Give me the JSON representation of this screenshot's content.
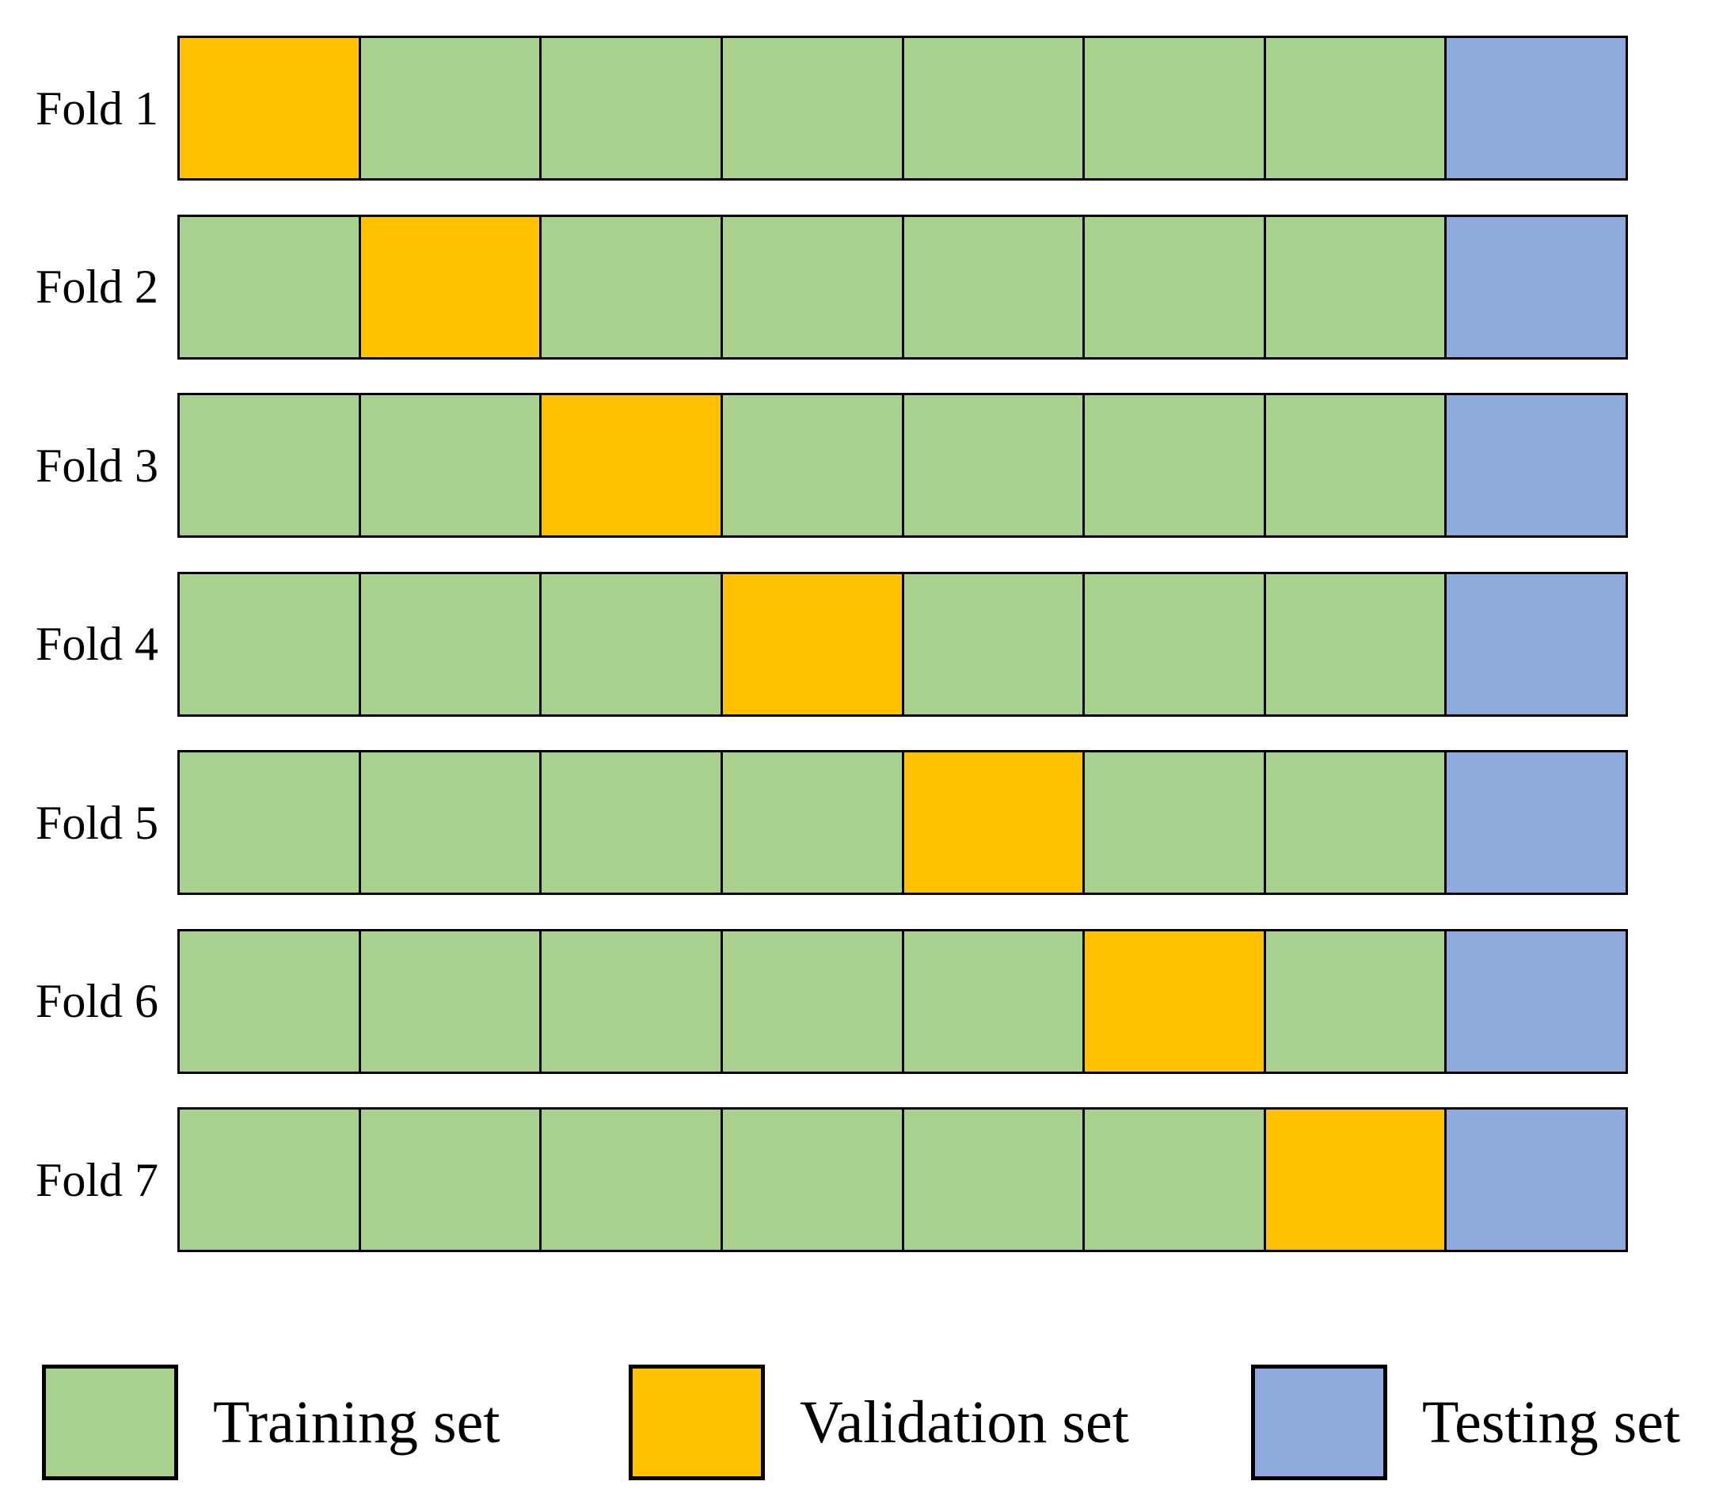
{
  "colors": {
    "training": "#A9D18E",
    "validation": "#FFC000",
    "testing": "#8FAADC",
    "border": "#000000"
  },
  "folds": [
    {
      "label": "Fold 1",
      "cells": [
        "validation",
        "training",
        "training",
        "training",
        "training",
        "training",
        "training",
        "testing"
      ]
    },
    {
      "label": "Fold 2",
      "cells": [
        "training",
        "validation",
        "training",
        "training",
        "training",
        "training",
        "training",
        "testing"
      ]
    },
    {
      "label": "Fold 3",
      "cells": [
        "training",
        "training",
        "validation",
        "training",
        "training",
        "training",
        "training",
        "testing"
      ]
    },
    {
      "label": "Fold 4",
      "cells": [
        "training",
        "training",
        "training",
        "validation",
        "training",
        "training",
        "training",
        "testing"
      ]
    },
    {
      "label": "Fold 5",
      "cells": [
        "training",
        "training",
        "training",
        "training",
        "validation",
        "training",
        "training",
        "testing"
      ]
    },
    {
      "label": "Fold 6",
      "cells": [
        "training",
        "training",
        "training",
        "training",
        "training",
        "validation",
        "training",
        "testing"
      ]
    },
    {
      "label": "Fold 7",
      "cells": [
        "training",
        "training",
        "training",
        "training",
        "training",
        "training",
        "validation",
        "testing"
      ]
    }
  ],
  "legend": [
    {
      "key": "training",
      "label": "Training set"
    },
    {
      "key": "validation",
      "label": "Validation set"
    },
    {
      "key": "testing",
      "label": "Testing set"
    }
  ]
}
